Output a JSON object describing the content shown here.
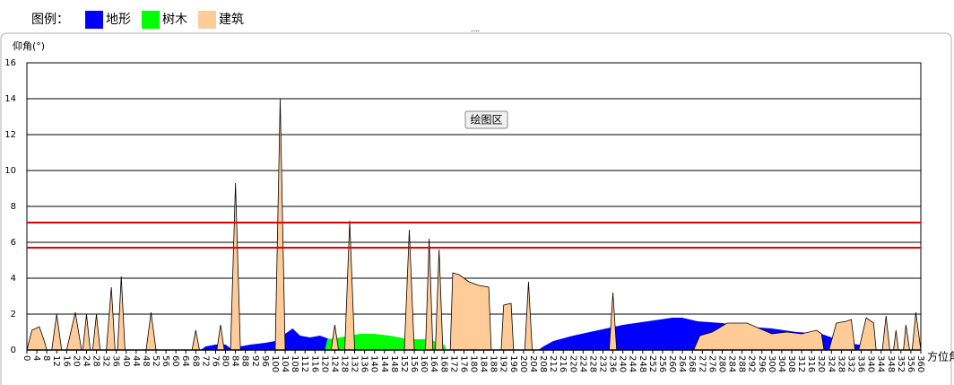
{
  "legend_title": "图例：",
  "button": "绘图区",
  "chart_data": {
    "type": "area",
    "ylabel": "仰角(°)",
    "xlabel": "方位角",
    "xlim": [
      0,
      360
    ],
    "ylim": [
      0,
      16
    ],
    "xticks": [
      0,
      4,
      8,
      12,
      16,
      20,
      24,
      28,
      32,
      36,
      40,
      44,
      48,
      52,
      56,
      60,
      64,
      68,
      72,
      76,
      80,
      84,
      88,
      92,
      96,
      100,
      104,
      108,
      112,
      116,
      120,
      124,
      128,
      132,
      136,
      140,
      144,
      148,
      152,
      156,
      160,
      164,
      168,
      172,
      176,
      180,
      184,
      188,
      192,
      196,
      200,
      204,
      208,
      212,
      216,
      220,
      224,
      228,
      232,
      236,
      240,
      244,
      248,
      252,
      256,
      260,
      264,
      268,
      272,
      276,
      280,
      284,
      288,
      292,
      296,
      300,
      304,
      308,
      312,
      316,
      320,
      324,
      328,
      332,
      336,
      340,
      344,
      348,
      352,
      356,
      360
    ],
    "yticks": [
      0,
      2,
      4,
      6,
      8,
      10,
      12,
      14,
      16
    ],
    "grid": true,
    "reference_lines": [
      7.1,
      5.7
    ],
    "reference_color": "#e00000",
    "series": [
      {
        "name": "地形",
        "color": "#0000ff",
        "x": [
          70,
          72,
          76,
          80,
          82,
          84,
          86,
          90,
          96,
          100,
          104,
          107,
          110,
          114,
          118,
          122,
          126,
          127,
          206,
          208,
          212,
          220,
          230,
          240,
          250,
          260,
          264,
          270,
          280,
          290,
          300,
          310,
          320,
          330,
          340,
          342
        ],
        "values": [
          0,
          0.2,
          0.3,
          0.3,
          0.1,
          0.1,
          0.2,
          0.3,
          0.4,
          0.5,
          0.9,
          1.2,
          0.8,
          0.7,
          0.8,
          0.6,
          0.4,
          0,
          0,
          0.2,
          0.5,
          0.8,
          1.1,
          1.4,
          1.6,
          1.8,
          1.8,
          1.6,
          1.5,
          1.3,
          1.2,
          1.0,
          0.9,
          0.4,
          0.2,
          0
        ]
      },
      {
        "name": "树木",
        "color": "#00ff00",
        "x": [
          120,
          121,
          126,
          130,
          134,
          140,
          146,
          150,
          153,
          154,
          160,
          164,
          166,
          167,
          168,
          169
        ],
        "values": [
          0,
          0.6,
          0.7,
          0.8,
          0.9,
          0.9,
          0.8,
          0.7,
          0.6,
          0.6,
          0.6,
          0.5,
          0.3,
          0.3,
          0.3,
          0
        ]
      },
      {
        "name": "建筑",
        "color": "#ffcc99",
        "x": [
          0,
          2,
          5,
          7,
          8,
          10,
          12,
          14,
          16,
          19.5,
          22,
          22.5,
          24,
          25.5,
          26.5,
          28,
          29.5,
          32,
          34,
          35.5,
          36.5,
          38,
          39.5,
          48,
          50,
          52,
          66.5,
          68,
          69.5,
          76.5,
          78,
          79.5,
          82,
          84,
          86,
          100,
          102,
          104,
          122.5,
          124,
          125.5,
          128,
          130,
          132,
          152,
          154,
          156,
          160.5,
          162,
          163.5,
          164.5,
          166,
          167.5,
          170.5,
          171.5,
          174,
          178,
          182,
          186,
          187,
          191,
          192,
          195,
          196,
          200.5,
          202,
          203.5,
          234.5,
          236,
          237.5,
          268.5,
          271,
          276,
          282,
          290,
          300,
          306,
          312,
          318,
          320,
          321,
          323,
          326,
          330,
          332,
          333.5,
          335,
          338,
          341,
          342,
          344.5,
          346,
          347.5,
          349,
          350,
          351,
          353,
          354,
          355.5,
          356.5,
          358,
          360
        ],
        "values": [
          0,
          1.1,
          1.3,
          0.5,
          0,
          0,
          2,
          0,
          0,
          2.1,
          0,
          0,
          2.0,
          0,
          0,
          2.0,
          0,
          0,
          3.5,
          0,
          0,
          4.1,
          0,
          0,
          2.1,
          0,
          0,
          1.1,
          0,
          0,
          1.4,
          0,
          0,
          9.3,
          0,
          0,
          14,
          0,
          0,
          1.4,
          0,
          0,
          7.2,
          0,
          0,
          6.7,
          0,
          0,
          6.2,
          0,
          0,
          5.6,
          0,
          0,
          4.3,
          4.2,
          3.8,
          3.6,
          3.5,
          0,
          0,
          2.5,
          2.6,
          0,
          0,
          3.8,
          0,
          0,
          3.2,
          0,
          0,
          0.8,
          1.0,
          1.5,
          1.5,
          0.9,
          1.0,
          0.9,
          1.1,
          0.9,
          0,
          0,
          1.5,
          1.6,
          1.7,
          0,
          0,
          1.8,
          1.5,
          0,
          0,
          1.9,
          0,
          0,
          1.1,
          0,
          0,
          1.4,
          0,
          0,
          2.1,
          0
        ]
      }
    ]
  }
}
